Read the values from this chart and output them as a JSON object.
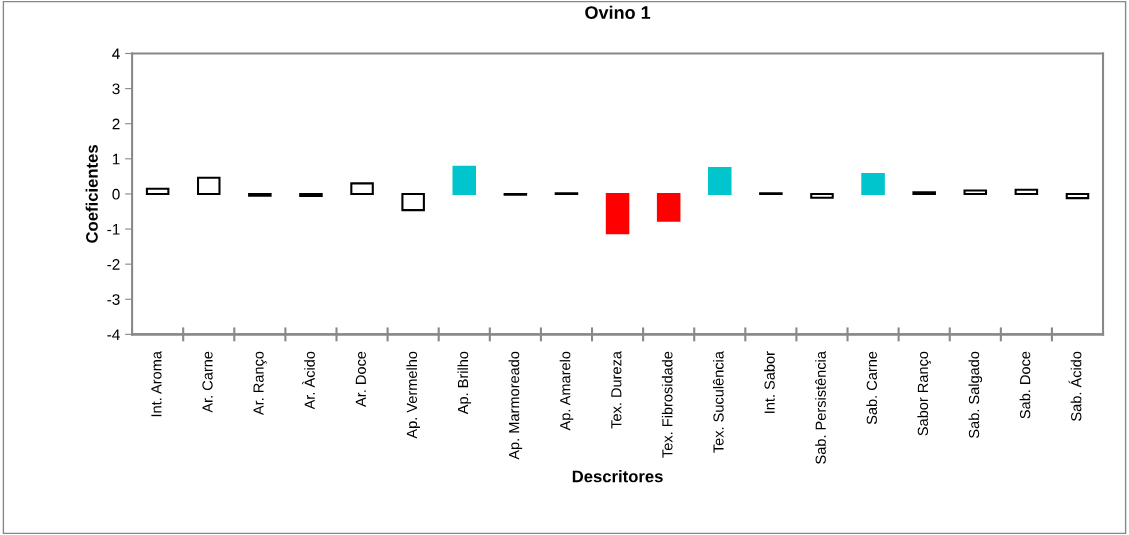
{
  "chart_data": {
    "type": "bar",
    "title": "Ovino 1",
    "xlabel": "Descritores",
    "ylabel": "Coeficientes",
    "categories": [
      "Int. Aroma",
      "Ar. Carne",
      "Ar. Ranço",
      "Ar. Àcido",
      "Ar. Doce",
      "Ap. Vermelho",
      "Ap. Brilho",
      "Ap. Marmoreado",
      "Ap. Amarelo",
      "Tex. Dureza",
      "Tex. Fibrosidade",
      "Tex. Suculência",
      "Int. Sabor",
      "Sab. Persistência",
      "Sab. Carne",
      "Sabor Ranço",
      "Sab. Salgado",
      "Sab. Doce",
      "Sab. Ácido"
    ],
    "values": [
      0.15,
      0.46,
      -0.05,
      -0.06,
      0.3,
      -0.46,
      0.77,
      -0.02,
      0.02,
      -1.12,
      -0.76,
      0.74,
      0.02,
      -0.11,
      0.57,
      0.05,
      0.1,
      0.12,
      -0.12
    ],
    "colors": [
      "#ffffff",
      "#ffffff",
      "#ffffff",
      "#ffffff",
      "#ffffff",
      "#ffffff",
      "#00c5cd",
      "#ffffff",
      "#ffffff",
      "#ff0000",
      "#ff0000",
      "#00c5cd",
      "#ffffff",
      "#ffffff",
      "#00c5cd",
      "#ffffff",
      "#ffffff",
      "#ffffff",
      "#ffffff"
    ],
    "ylim": [
      -4,
      4
    ],
    "yticks": [
      -4,
      -3,
      -2,
      -1,
      0,
      1,
      2,
      3,
      4
    ],
    "grid": false,
    "legend": false
  }
}
